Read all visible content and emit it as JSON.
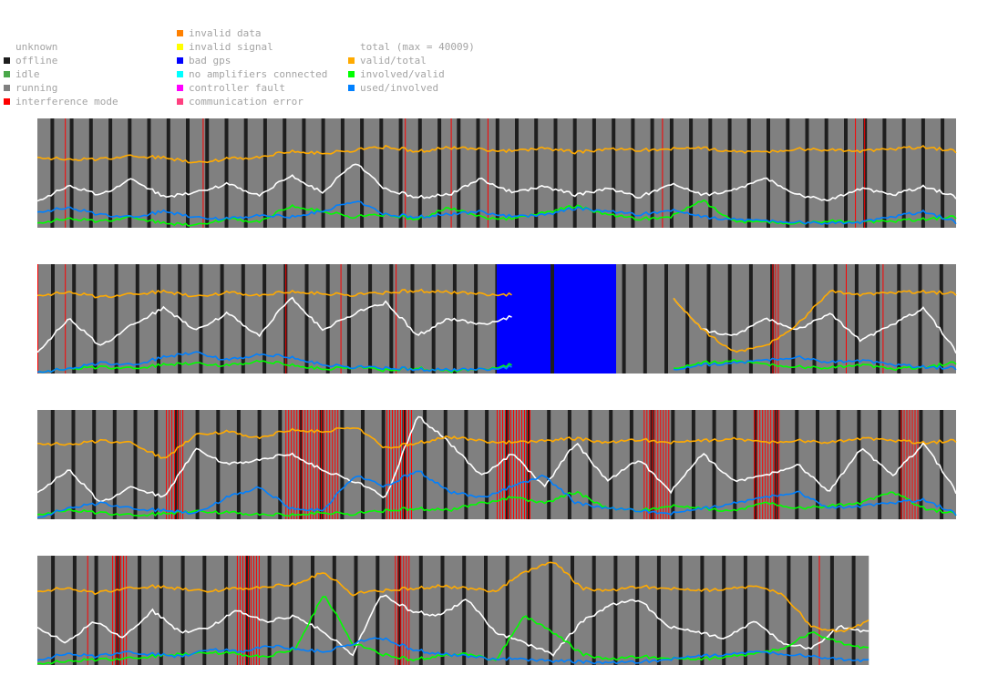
{
  "legend": {
    "status": [
      {
        "label": "unknown",
        "color": "#ffffff"
      },
      {
        "label": "offline",
        "color": "#1e1e1e"
      },
      {
        "label": "idle",
        "color": "#4aa84a"
      },
      {
        "label": "running",
        "color": "#808080"
      },
      {
        "label": "interference mode",
        "color": "#ff0000"
      }
    ],
    "errors": [
      {
        "label": "invalid data",
        "color": "#ff8000"
      },
      {
        "label": "invalid signal",
        "color": "#ffff00"
      },
      {
        "label": "bad gps",
        "color": "#0000ff"
      },
      {
        "label": "no amplifiers connected",
        "color": "#00ffff"
      },
      {
        "label": "controller fault",
        "color": "#ff00ff"
      },
      {
        "label": "communication error",
        "color": "#ff4080"
      }
    ],
    "series": [
      {
        "label": "total (max = 40009)",
        "color": "#ffffff"
      },
      {
        "label": "valid/total",
        "color": "#ffaa00"
      },
      {
        "label": "involved/valid",
        "color": "#00ff00"
      },
      {
        "label": "used/involved",
        "color": "#0080ff"
      }
    ]
  },
  "chart_data": {
    "type": "line",
    "ylim": [
      0,
      1
    ],
    "total_max": 40009,
    "panels": [
      {
        "length": 1,
        "offline_count": 47,
        "interference": [
          [
            0.03,
            0.002
          ],
          [
            0.18,
            0.002
          ],
          [
            0.4,
            0.002
          ],
          [
            0.45,
            0.002
          ],
          [
            0.49,
            0.002
          ],
          [
            0.68,
            0.002
          ],
          [
            0.89,
            0.002
          ],
          [
            0.9,
            0.002
          ]
        ],
        "bad_gps": [],
        "valid_total": [
          0.65,
          0.62,
          0.63,
          0.66,
          0.64,
          0.6,
          0.63,
          0.65,
          0.7,
          0.68,
          0.71,
          0.74,
          0.7,
          0.73,
          0.72,
          0.7,
          0.73,
          0.69,
          0.72,
          0.71,
          0.72,
          0.73,
          0.7,
          0.69,
          0.72,
          0.71,
          0.7,
          0.72,
          0.74,
          0.7
        ],
        "total": [
          0.25,
          0.38,
          0.3,
          0.45,
          0.28,
          0.33,
          0.4,
          0.3,
          0.48,
          0.32,
          0.6,
          0.35,
          0.28,
          0.3,
          0.45,
          0.32,
          0.38,
          0.3,
          0.36,
          0.28,
          0.4,
          0.3,
          0.35,
          0.45,
          0.3,
          0.25,
          0.36,
          0.3,
          0.38,
          0.28
        ],
        "involved_valid": [
          0.05,
          0.08,
          0.06,
          0.1,
          0.04,
          0.03,
          0.08,
          0.06,
          0.2,
          0.15,
          0.1,
          0.12,
          0.08,
          0.18,
          0.1,
          0.08,
          0.14,
          0.2,
          0.12,
          0.08,
          0.1,
          0.25,
          0.06,
          0.05,
          0.04,
          0.06,
          0.05,
          0.06,
          0.08,
          0.1
        ],
        "used_involved": [
          0.15,
          0.18,
          0.12,
          0.1,
          0.15,
          0.1,
          0.08,
          0.12,
          0.1,
          0.15,
          0.25,
          0.12,
          0.1,
          0.12,
          0.15,
          0.1,
          0.12,
          0.18,
          0.15,
          0.12,
          0.16,
          0.1,
          0.08,
          0.06,
          0.05,
          0.04,
          0.05,
          0.1,
          0.15,
          0.05
        ]
      },
      {
        "length": 1,
        "offline_count": 43,
        "interference": [
          [
            0.0,
            0.002
          ],
          [
            0.03,
            0.002
          ],
          [
            0.27,
            0.002
          ],
          [
            0.33,
            0.002
          ],
          [
            0.39,
            0.002
          ],
          [
            0.8,
            0.01
          ],
          [
            0.88,
            0.002
          ],
          [
            0.92,
            0.002
          ]
        ],
        "bad_gps": [
          [
            0.5,
            0.63
          ]
        ],
        "valid_total": [
          0.72,
          0.74,
          0.7,
          0.73,
          0.75,
          0.71,
          0.74,
          0.72,
          0.75,
          0.73,
          0.72,
          0.74,
          0.76,
          0.74,
          0.73,
          0.72,
          null,
          null,
          null,
          null,
          0.7,
          0.4,
          0.2,
          0.25,
          0.45,
          0.75,
          0.72,
          0.74,
          0.75,
          0.73
        ],
        "total": [
          0.2,
          0.5,
          0.25,
          0.45,
          0.6,
          0.4,
          0.55,
          0.35,
          0.7,
          0.4,
          0.55,
          0.65,
          0.35,
          0.5,
          0.45,
          0.52,
          null,
          null,
          null,
          null,
          0.7,
          0.4,
          0.35,
          0.5,
          0.4,
          0.55,
          0.3,
          0.45,
          0.6,
          0.2
        ],
        "involved_valid": [
          0.02,
          0.04,
          0.06,
          0.05,
          0.08,
          0.1,
          0.07,
          0.12,
          0.08,
          0.04,
          0.06,
          0.03,
          0.05,
          0.02,
          0.04,
          0.08,
          null,
          null,
          null,
          null,
          0.03,
          0.1,
          0.12,
          0.08,
          0.06,
          0.05,
          0.08,
          0.04,
          0.06,
          0.1
        ],
        "used_involved": [
          0.02,
          0.04,
          0.1,
          0.08,
          0.15,
          0.2,
          0.12,
          0.18,
          0.15,
          0.08,
          0.06,
          0.05,
          0.04,
          0.03,
          0.04,
          0.06,
          null,
          null,
          null,
          null,
          0.02,
          0.08,
          0.1,
          0.12,
          0.15,
          0.1,
          0.12,
          0.08,
          0.06,
          0.05
        ]
      },
      {
        "length": 1,
        "offline_count": 44,
        "interference": [
          [
            0.14,
            0.02
          ],
          [
            0.27,
            0.06
          ],
          [
            0.38,
            0.03
          ],
          [
            0.5,
            0.04
          ],
          [
            0.66,
            0.03
          ],
          [
            0.78,
            0.03
          ],
          [
            0.94,
            0.02
          ]
        ],
        "bad_gps": [],
        "valid_total": [
          0.7,
          0.68,
          0.72,
          0.7,
          0.55,
          0.78,
          0.8,
          0.75,
          0.82,
          0.8,
          0.85,
          0.65,
          0.7,
          0.75,
          0.72,
          0.7,
          0.72,
          0.74,
          0.7,
          0.73,
          0.7,
          0.72,
          0.74,
          0.7,
          0.72,
          0.7,
          0.74,
          0.72,
          0.7,
          0.72
        ],
        "total": [
          0.25,
          0.45,
          0.15,
          0.3,
          0.2,
          0.65,
          0.5,
          0.55,
          0.6,
          0.45,
          0.35,
          0.2,
          0.95,
          0.7,
          0.4,
          0.6,
          0.3,
          0.7,
          0.35,
          0.55,
          0.25,
          0.6,
          0.35,
          0.4,
          0.5,
          0.25,
          0.65,
          0.4,
          0.7,
          0.25
        ],
        "involved_valid": [
          0.05,
          0.08,
          0.06,
          0.04,
          0.05,
          0.08,
          0.06,
          0.05,
          0.04,
          0.06,
          0.05,
          0.08,
          0.1,
          0.08,
          0.15,
          0.2,
          0.15,
          0.25,
          0.1,
          0.08,
          0.12,
          0.1,
          0.08,
          0.15,
          0.1,
          0.12,
          0.15,
          0.25,
          0.1,
          0.05
        ],
        "used_involved": [
          0.02,
          0.1,
          0.15,
          0.1,
          0.08,
          0.06,
          0.2,
          0.3,
          0.1,
          0.08,
          0.4,
          0.3,
          0.45,
          0.25,
          0.2,
          0.3,
          0.4,
          0.15,
          0.1,
          0.08,
          0.05,
          0.1,
          0.15,
          0.2,
          0.25,
          0.1,
          0.12,
          0.15,
          0.18,
          0.05
        ]
      },
      {
        "length": 0.905,
        "offline_count": 38,
        "interference": [
          [
            0.06,
            0.002
          ],
          [
            0.09,
            0.02
          ],
          [
            0.24,
            0.03
          ],
          [
            0.43,
            0.02
          ],
          [
            0.94,
            0.002
          ]
        ],
        "bad_gps": [],
        "valid_total": [
          0.68,
          0.7,
          0.66,
          0.7,
          0.72,
          0.7,
          0.68,
          0.7,
          0.72,
          0.74,
          0.85,
          0.65,
          0.68,
          0.7,
          0.72,
          0.7,
          0.68,
          0.85,
          0.95,
          0.7,
          0.68,
          0.72,
          0.7,
          0.68,
          0.7,
          0.72,
          0.65,
          0.35,
          0.3,
          0.4
        ],
        "total": [
          0.35,
          0.2,
          0.4,
          0.25,
          0.5,
          0.3,
          0.35,
          0.5,
          0.4,
          0.45,
          0.3,
          0.1,
          0.65,
          0.5,
          0.45,
          0.6,
          0.3,
          0.2,
          0.1,
          0.4,
          0.55,
          0.6,
          0.35,
          0.3,
          0.25,
          0.4,
          0.2,
          0.15,
          0.35,
          0.3
        ],
        "involved_valid": [
          0.02,
          0.03,
          0.05,
          0.06,
          0.08,
          0.1,
          0.12,
          0.1,
          0.08,
          0.15,
          0.65,
          0.2,
          0.1,
          0.05,
          0.08,
          0.1,
          0.05,
          0.45,
          0.3,
          0.1,
          0.05,
          0.08,
          0.06,
          0.05,
          0.08,
          0.1,
          0.15,
          0.3,
          0.2,
          0.15
        ],
        "used_involved": [
          0.05,
          0.1,
          0.08,
          0.12,
          0.1,
          0.08,
          0.15,
          0.12,
          0.18,
          0.15,
          0.12,
          0.2,
          0.25,
          0.15,
          0.1,
          0.08,
          0.06,
          0.05,
          0.04,
          0.03,
          0.02,
          0.03,
          0.05,
          0.08,
          0.1,
          0.12,
          0.1,
          0.08,
          0.05,
          0.04
        ]
      }
    ]
  }
}
